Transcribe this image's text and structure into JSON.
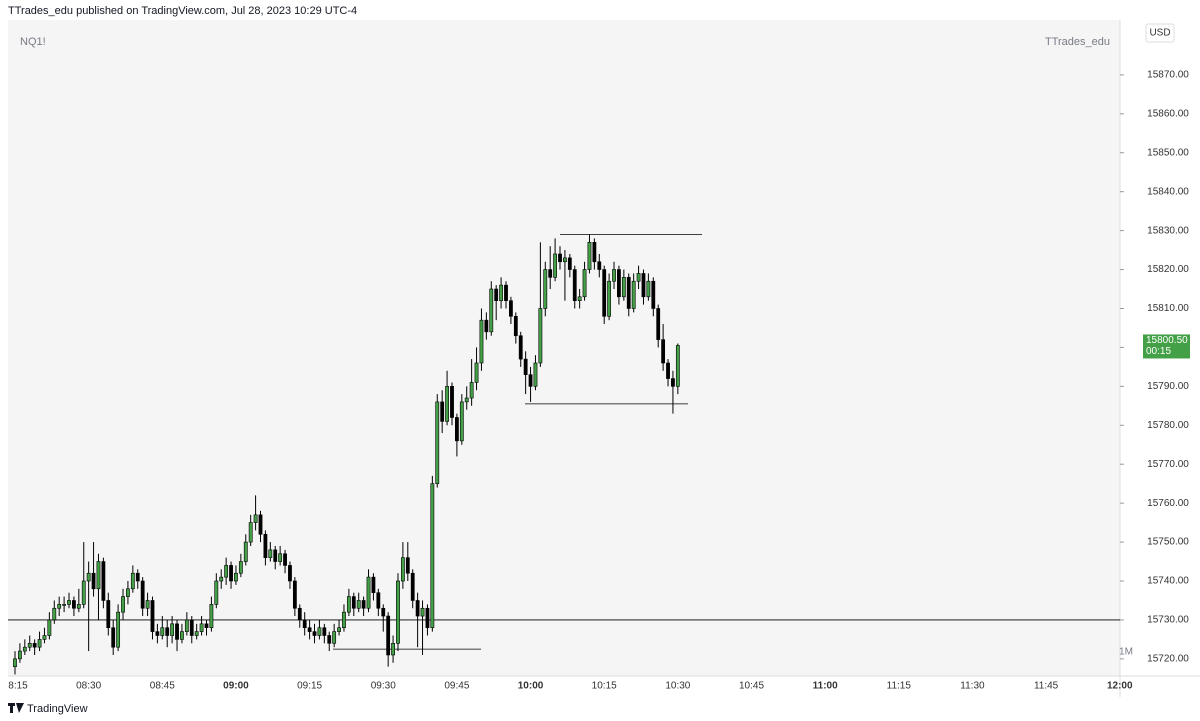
{
  "chart_data": {
    "type": "candlestick",
    "header": "TTrades_edu published on TradingView.com, Jul 28, 2023 10:29 UTC-4",
    "symbol": "NQ1!",
    "author": "TTrades_edu",
    "currency": "USD",
    "interval": "1M",
    "footer": "TradingView",
    "up_color": "#43a047",
    "down_color": "#000000",
    "ylim": [
      15715.6,
      15884.1
    ],
    "yticks": [
      {
        "value": 15720,
        "label": "15720.00"
      },
      {
        "value": 15730,
        "label": "15730.00"
      },
      {
        "value": 15740,
        "label": "15740.00"
      },
      {
        "value": 15750,
        "label": "15750.00"
      },
      {
        "value": 15760,
        "label": "15760.00"
      },
      {
        "value": 15770,
        "label": "15770.00"
      },
      {
        "value": 15780,
        "label": "15780.00"
      },
      {
        "value": 15790,
        "label": "15790.00"
      },
      {
        "value": 15800,
        "label": "15800.00"
      },
      {
        "value": 15810,
        "label": "15810.00"
      },
      {
        "value": 15820,
        "label": "15820.00"
      },
      {
        "value": 15830,
        "label": "15830.00"
      },
      {
        "value": 15840,
        "label": "15840.00"
      },
      {
        "value": 15850,
        "label": "15850.00"
      },
      {
        "value": 15860,
        "label": "15860.00"
      },
      {
        "value": 15870,
        "label": "15870.00"
      }
    ],
    "xtick_labels": [
      "8:15",
      "08:30",
      "08:45",
      "09:00",
      "09:15",
      "09:30",
      "09:45",
      "10:00",
      "10:15",
      "10:30",
      "10:45",
      "11:00",
      "11:15",
      "11:30",
      "11:45",
      "12:00"
    ],
    "last_price": {
      "value": 15800.5,
      "label": "15800.50",
      "countdown": "00:15"
    },
    "levels": [
      15730,
      15829,
      15785.5,
      15722.5
    ],
    "ohlc": [
      [
        15718,
        15722,
        15716,
        15720
      ],
      [
        15720,
        15724,
        15719,
        15722
      ],
      [
        15722,
        15725,
        15721,
        15723
      ],
      [
        15723,
        15726,
        15722,
        15724
      ],
      [
        15724,
        15725,
        15721,
        15723
      ],
      [
        15723,
        15727,
        15722,
        15725
      ],
      [
        15725,
        15728,
        15724,
        15726
      ],
      [
        15726,
        15732,
        15725,
        15730
      ],
      [
        15730,
        15735,
        15729,
        15733
      ],
      [
        15733,
        15736,
        15731,
        15734
      ],
      [
        15734,
        15736,
        15732,
        15734
      ],
      [
        15734,
        15737,
        15733,
        15735
      ],
      [
        15735,
        15736,
        15731,
        15733
      ],
      [
        15733,
        15738,
        15732,
        15734
      ],
      [
        15734,
        15750,
        15733,
        15740
      ],
      [
        15740,
        15745,
        15722,
        15742
      ],
      [
        15742,
        15750,
        15736,
        15738
      ],
      [
        15738,
        15747,
        15730,
        15745
      ],
      [
        15745,
        15746,
        15733,
        15735
      ],
      [
        15735,
        15737,
        15726,
        15728
      ],
      [
        15728,
        15730,
        15721,
        15723
      ],
      [
        15723,
        15734,
        15722,
        15732
      ],
      [
        15732,
        15738,
        15730,
        15736
      ],
      [
        15736,
        15740,
        15734,
        15738
      ],
      [
        15738,
        15744,
        15737,
        15742
      ],
      [
        15742,
        15743,
        15738,
        15740
      ],
      [
        15740,
        15741,
        15731,
        15733
      ],
      [
        15733,
        15737,
        15731,
        15735
      ],
      [
        15735,
        15736,
        15725,
        15727
      ],
      [
        15727,
        15729,
        15724,
        15726
      ],
      [
        15726,
        15731,
        15725,
        15728
      ],
      [
        15728,
        15730,
        15723,
        15726
      ],
      [
        15726,
        15731,
        15724,
        15729
      ],
      [
        15729,
        15730,
        15722,
        15725
      ],
      [
        15725,
        15729,
        15724,
        15727
      ],
      [
        15727,
        15732,
        15726,
        15730
      ],
      [
        15730,
        15731,
        15724,
        15726
      ],
      [
        15726,
        15729,
        15725,
        15727
      ],
      [
        15727,
        15731,
        15726,
        15729
      ],
      [
        15729,
        15730,
        15726,
        15728
      ],
      [
        15728,
        15736,
        15727,
        15734
      ],
      [
        15734,
        15742,
        15733,
        15740
      ],
      [
        15740,
        15743,
        15738,
        15741
      ],
      [
        15741,
        15746,
        15739,
        15744
      ],
      [
        15744,
        15745,
        15738,
        15740
      ],
      [
        15740,
        15744,
        15739,
        15742
      ],
      [
        15742,
        15747,
        15741,
        15745
      ],
      [
        15745,
        15752,
        15744,
        15750
      ],
      [
        15750,
        15757,
        15749,
        15755
      ],
      [
        15755,
        15762,
        15753,
        15757
      ],
      [
        15757,
        15758,
        15750,
        15752
      ],
      [
        15752,
        15753,
        15744,
        15746
      ],
      [
        15746,
        15750,
        15745,
        15748
      ],
      [
        15748,
        15749,
        15743,
        15745
      ],
      [
        15745,
        15749,
        15744,
        15747
      ],
      [
        15747,
        15748,
        15742,
        15744
      ],
      [
        15744,
        15745,
        15738,
        15740
      ],
      [
        15740,
        15741,
        15731,
        15733
      ],
      [
        15733,
        15734,
        15728,
        15730
      ],
      [
        15730,
        15732,
        15726,
        15728
      ],
      [
        15728,
        15730,
        15725,
        15727
      ],
      [
        15727,
        15729,
        15724,
        15726
      ],
      [
        15726,
        15730,
        15725,
        15728
      ],
      [
        15728,
        15729,
        15724,
        15726
      ],
      [
        15726,
        15727,
        15722,
        15724
      ],
      [
        15724,
        15729,
        15723,
        15727
      ],
      [
        15727,
        15730,
        15726,
        15728
      ],
      [
        15728,
        15734,
        15727,
        15732
      ],
      [
        15732,
        15738,
        15731,
        15736
      ],
      [
        15736,
        15737,
        15731,
        15733
      ],
      [
        15733,
        15737,
        15732,
        15735
      ],
      [
        15735,
        15736,
        15731,
        15733
      ],
      [
        15733,
        15743,
        15732,
        15741
      ],
      [
        15741,
        15742,
        15735,
        15737
      ],
      [
        15737,
        15738,
        15731,
        15733
      ],
      [
        15733,
        15734,
        15727,
        15731
      ],
      [
        15731,
        15732,
        15718,
        15721
      ],
      [
        15721,
        15726,
        15719,
        15724
      ],
      [
        15724,
        15742,
        15722,
        15740
      ],
      [
        15740,
        15750,
        15738,
        15746
      ],
      [
        15746,
        15750,
        15740,
        15742
      ],
      [
        15742,
        15743,
        15733,
        15735
      ],
      [
        15735,
        15737,
        15723,
        15731
      ],
      [
        15731,
        15735,
        15721,
        15733
      ],
      [
        15733,
        15734,
        15726,
        15728
      ],
      [
        15728,
        15767,
        15727,
        15765
      ],
      [
        15765,
        15788,
        15764,
        15786
      ],
      [
        15786,
        15789,
        15778,
        15781
      ],
      [
        15781,
        15794,
        15780,
        15790
      ],
      [
        15790,
        15791,
        15780,
        15782
      ],
      [
        15782,
        15783,
        15772,
        15776
      ],
      [
        15776,
        15788,
        15775,
        15786
      ],
      [
        15786,
        15790,
        15784,
        15787
      ],
      [
        15787,
        15797,
        15785,
        15791
      ],
      [
        15791,
        15800,
        15789,
        15796
      ],
      [
        15796,
        15810,
        15794,
        15807
      ],
      [
        15807,
        15809,
        15802,
        15804
      ],
      [
        15804,
        15817,
        15803,
        15815
      ],
      [
        15815,
        15816,
        15807,
        15812
      ],
      [
        15812,
        15818,
        15810,
        15816
      ],
      [
        15816,
        15817,
        15810,
        15812
      ],
      [
        15812,
        15813,
        15806,
        15808
      ],
      [
        15808,
        15809,
        15801,
        15803
      ],
      [
        15803,
        15804,
        15795,
        15797
      ],
      [
        15797,
        15799,
        15788,
        15793
      ],
      [
        15793,
        15795,
        15786,
        15790
      ],
      [
        15790,
        15798,
        15789,
        15796
      ],
      [
        15796,
        15827,
        15795,
        15810
      ],
      [
        15810,
        15822,
        15808,
        15820
      ],
      [
        15820,
        15826,
        15815,
        15818
      ],
      [
        15818,
        15828,
        15817,
        15824
      ],
      [
        15824,
        15826,
        15820,
        15822
      ],
      [
        15822,
        15825,
        15812,
        15823
      ],
      [
        15823,
        15824,
        15818,
        15820
      ],
      [
        15820,
        15821,
        15810,
        15812
      ],
      [
        15812,
        15815,
        15810,
        15813
      ],
      [
        15813,
        15822,
        15812,
        15820
      ],
      [
        15820,
        15829,
        15819,
        15827
      ],
      [
        15827,
        15828,
        15820,
        15822
      ],
      [
        15822,
        15824,
        15818,
        15820
      ],
      [
        15820,
        15821,
        15806,
        15808
      ],
      [
        15808,
        15819,
        15807,
        15817
      ],
      [
        15817,
        15822,
        15815,
        15820
      ],
      [
        15820,
        15821,
        15811,
        15813
      ],
      [
        15813,
        15820,
        15812,
        15818
      ],
      [
        15818,
        15819,
        15808,
        15810
      ],
      [
        15810,
        15819,
        15809,
        15817
      ],
      [
        15817,
        15821,
        15815,
        15819
      ],
      [
        15819,
        15820,
        15811,
        15813
      ],
      [
        15813,
        15819,
        15812,
        15817
      ],
      [
        15817,
        15818,
        15808,
        15810
      ],
      [
        15810,
        15811,
        15800,
        15802
      ],
      [
        15802,
        15806,
        15794,
        15796
      ],
      [
        15796,
        15797,
        15790,
        15792
      ],
      [
        15792,
        15794,
        15783,
        15790
      ],
      [
        15790,
        15801,
        15788,
        15800.5
      ]
    ]
  }
}
